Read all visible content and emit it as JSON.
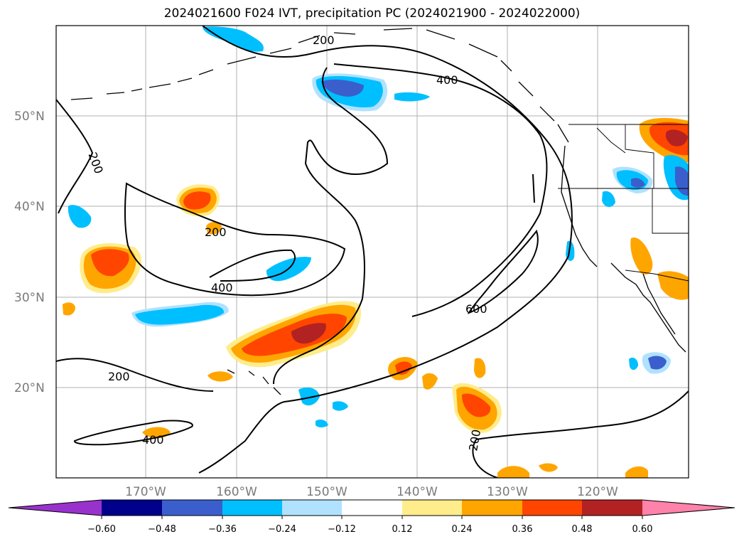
{
  "title": "2024021600 F024 IVT, precipitation PC (2024021900 - 2024022000)",
  "map": {
    "lat_labels": [
      "50°N",
      "40°N",
      "30°N",
      "20°N"
    ],
    "lon_labels": [
      "170°W",
      "160°W",
      "150°W",
      "140°W",
      "130°W",
      "120°W"
    ],
    "ivt_contour_labels": [
      "200",
      "200",
      "200",
      "200",
      "200",
      "400",
      "400",
      "400",
      "600"
    ]
  },
  "colorbar": {
    "ticks": [
      "−0.60",
      "−0.48",
      "−0.36",
      "−0.24",
      "−0.12",
      "0.12",
      "0.24",
      "0.36",
      "0.48",
      "0.60"
    ],
    "colors": {
      "below": "#9932cc",
      "b1": "#00008b",
      "b2": "#3a5fcd",
      "b3": "#00bfff",
      "b4": "#b0e2ff",
      "mid": "#ffffff",
      "r1": "#ffec8b",
      "r2": "#ffa500",
      "r3": "#ff4500",
      "r4": "#b22222",
      "above": "#ff82ab"
    }
  }
}
